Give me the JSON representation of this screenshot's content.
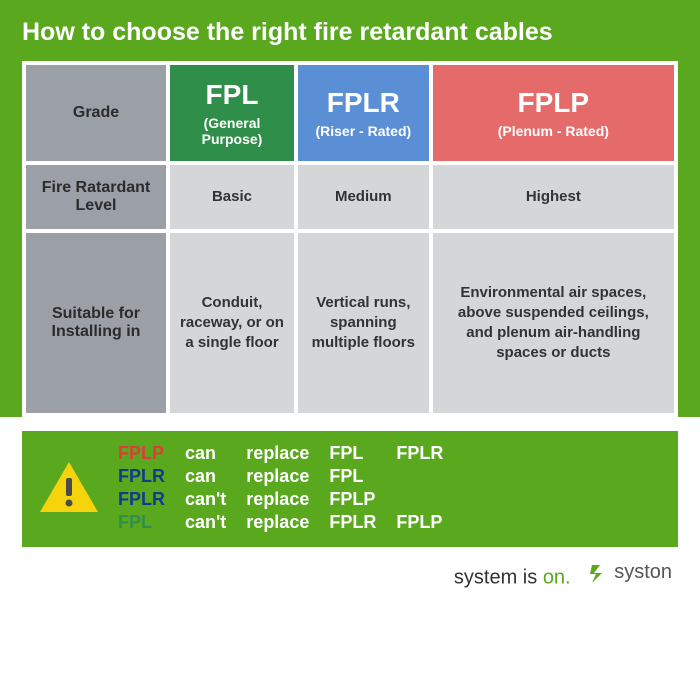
{
  "title": "How to choose the right fire retardant cables",
  "colors": {
    "brand_green": "#5aa81e",
    "header_gray": "#9aa0a6",
    "cell_gray": "#d4d6d8",
    "fpl_green": "#2f8f4a",
    "fplr_blue": "#5a8fd6",
    "fplp_red": "#e56a6a",
    "warn_yellow": "#f6d40c",
    "rule_red": "#e03a3a",
    "rule_darkblue": "#123a8f"
  },
  "table": {
    "row_labels": {
      "grade": "Grade",
      "level": "Fire Ratardant Level",
      "suitable": "Suitable for Installing in"
    },
    "columns": [
      {
        "code": "FPL",
        "subtitle": "(General Purpose)"
      },
      {
        "code": "FPLR",
        "subtitle": "(Riser - Rated)"
      },
      {
        "code": "FPLP",
        "subtitle": "(Plenum - Rated)"
      }
    ],
    "level": [
      "Basic",
      "Medium",
      "Highest"
    ],
    "suitable": [
      "Conduit, raceway, or on a single floor",
      "Vertical runs, spanning multiple floors",
      "Environmental air spaces, above suspended ceilings, and plenum air-handling spaces or ducts"
    ]
  },
  "rules": [
    {
      "a": "FPLP",
      "a_color": "#e03a3a",
      "verb": "can",
      "word": "replace",
      "b1": "FPL",
      "b2": "FPLR"
    },
    {
      "a": "FPLR",
      "a_color": "#123a8f",
      "verb": "can",
      "word": "replace",
      "b1": "FPL",
      "b2": ""
    },
    {
      "a": "FPLR",
      "a_color": "#123a8f",
      "verb": "can't",
      "word": "replace",
      "b1": "FPLP",
      "b2": ""
    },
    {
      "a": "FPL",
      "a_color": "#2f8f4a",
      "verb": "can't",
      "word": "replace",
      "b1": "FPLR",
      "b2": "FPLP"
    }
  ],
  "footer": {
    "text_a": "system is ",
    "text_b": "on.",
    "brand": "syston"
  }
}
